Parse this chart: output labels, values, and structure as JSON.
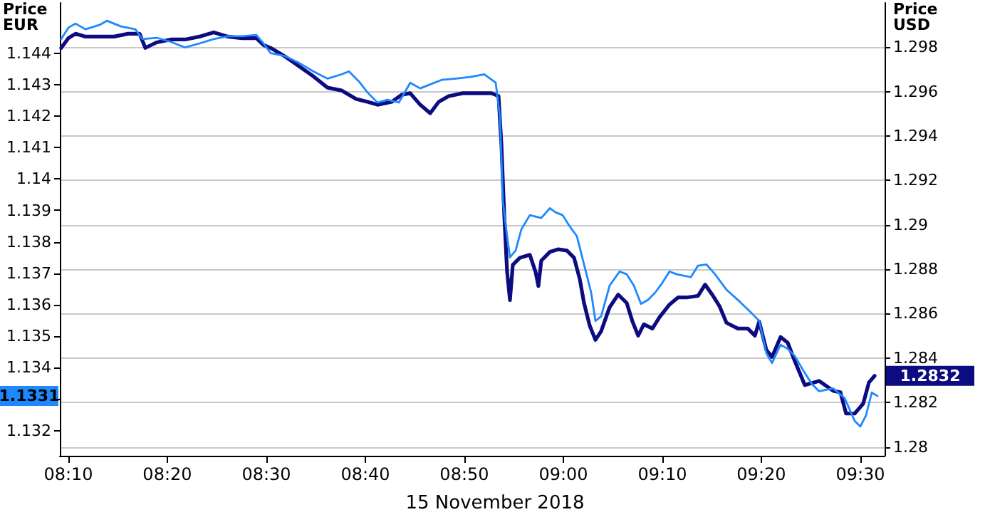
{
  "chart_data": {
    "type": "line",
    "ylabel": "Price\nEUR",
    "y2label": "Price\nUSD",
    "xlabel": "15 November 2018",
    "xlim": [
      8.1523,
      9.5408
    ],
    "xticks": [
      {
        "value": 8.1667,
        "label": "08:10"
      },
      {
        "value": 8.3333,
        "label": "08:20"
      },
      {
        "value": 8.5,
        "label": "08:30"
      },
      {
        "value": 8.6667,
        "label": "08:40"
      },
      {
        "value": 8.8333,
        "label": "08:50"
      },
      {
        "value": 9.0,
        "label": "09:00"
      },
      {
        "value": 9.1667,
        "label": "09:10"
      },
      {
        "value": 9.3333,
        "label": "09:20"
      },
      {
        "value": 9.5,
        "label": "09:30"
      }
    ],
    "ylim": [
      1.1312,
      1.1456
    ],
    "yticks": [
      1.132,
      {
        "value": 1.133,
        "label": null
      },
      1.134,
      1.135,
      1.136,
      1.137,
      1.138,
      1.139,
      1.14,
      1.141,
      1.142,
      1.143,
      1.144
    ],
    "y2lim": [
      1.2796,
      1.3
    ],
    "y2ticks": [
      1.28,
      1.282,
      1.284,
      1.286,
      1.288,
      1.29,
      1.292,
      1.294,
      1.296,
      1.298
    ],
    "grid": "y",
    "marker": "none",
    "line_style": "solid",
    "series": [
      {
        "color": "#1e88ff",
        "x": [
          8.1547,
          8.1667,
          8.1787,
          8.1954,
          8.2194,
          8.2314,
          8.2554,
          8.2794,
          8.2914,
          8.3153,
          8.3393,
          8.3633,
          8.3873,
          8.4113,
          8.4353,
          8.4592,
          8.4832,
          8.4952,
          8.5072,
          8.5312,
          8.5552,
          8.5791,
          8.6031,
          8.6271,
          8.6391,
          8.6559,
          8.6703,
          8.6871,
          8.7038,
          8.723,
          8.7422,
          8.759,
          8.771,
          8.795,
          8.8189,
          8.8429,
          8.8669,
          8.8861,
          8.8933,
          8.8981,
          8.9053,
          8.9101,
          8.9197,
          8.9293,
          8.9436,
          8.9628,
          8.9772,
          8.9868,
          8.9988,
          9.0108,
          9.0228,
          9.0348,
          9.0468,
          9.054,
          9.0635,
          9.0779,
          9.0947,
          9.1067,
          9.1187,
          9.1307,
          9.1427,
          9.1547,
          9.1667,
          9.1787,
          9.1906,
          9.2146,
          9.2266,
          9.241,
          9.2554,
          9.2746,
          9.2986,
          9.3177,
          9.3297,
          9.3417,
          9.3513,
          9.3657,
          9.3777,
          9.3897,
          9.4065,
          9.4185,
          9.4305,
          9.4544,
          9.4736,
          9.4904,
          9.5,
          9.5096,
          9.5192,
          9.5288
        ],
        "values": [
          1.14445,
          1.14481,
          1.14494,
          1.14476,
          1.1449,
          1.14503,
          1.14485,
          1.14476,
          1.14445,
          1.14449,
          1.14436,
          1.14418,
          1.14431,
          1.14445,
          1.14454,
          1.14454,
          1.14458,
          1.14431,
          1.144,
          1.14391,
          1.14369,
          1.14342,
          1.14319,
          1.14333,
          1.14342,
          1.1431,
          1.14275,
          1.14243,
          1.14252,
          1.14243,
          1.14306,
          1.14288,
          1.14297,
          1.14315,
          1.14319,
          1.14324,
          1.14333,
          1.14306,
          1.14198,
          1.1393,
          1.13818,
          1.13751,
          1.13773,
          1.1384,
          1.13885,
          1.13876,
          1.13907,
          1.13894,
          1.13885,
          1.13849,
          1.13818,
          1.13728,
          1.13639,
          1.13549,
          1.13563,
          1.13661,
          1.13706,
          1.13697,
          1.13661,
          1.13603,
          1.13616,
          1.13639,
          1.1367,
          1.13706,
          1.13697,
          1.13688,
          1.13724,
          1.13728,
          1.13697,
          1.13648,
          1.13607,
          1.13572,
          1.13549,
          1.13446,
          1.13415,
          1.13473,
          1.1346,
          1.13437,
          1.13383,
          1.13348,
          1.13325,
          1.13334,
          1.13303,
          1.13231,
          1.13213,
          1.13249,
          1.13321,
          1.1331
        ]
      },
      {
        "color": "#0c0c80",
        "axis": "y2",
        "x": [
          8.1547,
          8.1667,
          8.1787,
          8.1954,
          8.2194,
          8.2434,
          8.2674,
          8.2866,
          8.2962,
          8.3153,
          8.3393,
          8.3633,
          8.3873,
          8.4113,
          8.4353,
          8.4592,
          8.4832,
          8.4952,
          8.5072,
          8.5312,
          8.5552,
          8.5791,
          8.6031,
          8.6271,
          8.6511,
          8.6703,
          8.6871,
          8.711,
          8.7278,
          8.7422,
          8.759,
          8.7758,
          8.7902,
          8.807,
          8.8309,
          8.8549,
          8.8789,
          8.8909,
          8.8957,
          8.9005,
          8.9053,
          8.9101,
          8.9149,
          8.9269,
          8.9436,
          8.9532,
          8.958,
          8.9628,
          8.9772,
          8.9916,
          9.006,
          9.018,
          9.0276,
          9.0348,
          9.0444,
          9.054,
          9.0635,
          9.0779,
          9.0923,
          9.1067,
          9.1163,
          9.1259,
          9.1355,
          9.1499,
          9.1619,
          9.1787,
          9.193,
          9.2074,
          9.2266,
          9.2386,
          9.2506,
          9.2626,
          9.2746,
          9.2938,
          9.3106,
          9.3225,
          9.3297,
          9.3417,
          9.3513,
          9.3657,
          9.3777,
          9.3897,
          9.4065,
          9.4305,
          9.4544,
          9.4664,
          9.476,
          9.4904,
          9.5048,
          9.5144,
          9.524
        ],
        "values": [
          1.29797,
          1.29841,
          1.29861,
          1.29848,
          1.29848,
          1.29848,
          1.29861,
          1.29861,
          1.29797,
          1.29822,
          1.29835,
          1.29835,
          1.29848,
          1.29867,
          1.29848,
          1.29841,
          1.29841,
          1.2981,
          1.29797,
          1.29759,
          1.29714,
          1.29669,
          1.29618,
          1.29605,
          1.29567,
          1.29554,
          1.29541,
          1.29554,
          1.29586,
          1.29593,
          1.29541,
          1.29503,
          1.29554,
          1.2958,
          1.29593,
          1.29593,
          1.29593,
          1.2958,
          1.29363,
          1.29044,
          1.28788,
          1.28661,
          1.2882,
          1.28852,
          1.28865,
          1.28788,
          1.28724,
          1.28839,
          1.28878,
          1.2889,
          1.28884,
          1.28852,
          1.28756,
          1.28648,
          1.28546,
          1.28482,
          1.2852,
          1.28629,
          1.28686,
          1.28648,
          1.28565,
          1.28501,
          1.28552,
          1.28533,
          1.28584,
          1.28641,
          1.28673,
          1.28673,
          1.2868,
          1.28731,
          1.28686,
          1.28635,
          1.28559,
          1.28533,
          1.28533,
          1.28501,
          1.28565,
          1.28437,
          1.28405,
          1.28495,
          1.28469,
          1.28386,
          1.28278,
          1.28297,
          1.28252,
          1.28246,
          1.2815,
          1.2815,
          1.28195,
          1.2829,
          1.2832
        ]
      }
    ],
    "annotations": [
      "1.1331",
      "1.2832"
    ]
  }
}
